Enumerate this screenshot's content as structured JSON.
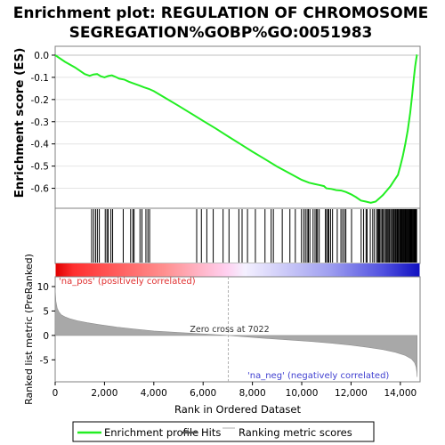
{
  "chart_data": {
    "type": "line",
    "title_line1": "Enrichment plot: REGULATION OF CHROMOSOME",
    "title_line2": "SEGREGATION%GOBP%GO:0051983",
    "es_ylabel": "Enrichment score (ES)",
    "es_yticks": [
      0.0,
      -0.1,
      -0.2,
      -0.3,
      -0.4,
      -0.5,
      -0.6
    ],
    "es_ylim": [
      -0.69,
      0.04
    ],
    "xlim": [
      0,
      14800
    ],
    "xticks": [
      0,
      2000,
      4000,
      6000,
      8000,
      10000,
      12000,
      14000
    ],
    "xtick_labels": [
      "0",
      "2,000",
      "4,000",
      "6,000",
      "8,000",
      "10,000",
      "12,000",
      "14,000"
    ],
    "xlabel": "Rank in Ordered Dataset",
    "rank_ylabel": "Ranked list metric (PreRanked)",
    "rank_yticks": [
      10,
      5,
      0,
      -5
    ],
    "rank_ylim": [
      -9.5,
      12.0
    ],
    "zero_cross_label": "Zero cross at 7022",
    "zero_cross": 7022,
    "pos_label": "'na_pos' (positively correlated)",
    "neg_label": "'na_neg' (negatively correlated)",
    "n_genes": 14680,
    "es_profile": {
      "x": [
        0,
        400,
        800,
        1200,
        1400,
        1550,
        1700,
        1850,
        2000,
        2150,
        2300,
        2450,
        2600,
        2800,
        3000,
        3200,
        3400,
        3600,
        3800,
        4000,
        4500,
        5000,
        5500,
        6000,
        6500,
        7000,
        7500,
        8000,
        8500,
        9000,
        9500,
        10000,
        10300,
        10500,
        10700,
        10900,
        11000,
        11200,
        11400,
        11600,
        11800,
        12000,
        12200,
        12400,
        12600,
        12800,
        13000,
        13150,
        13300,
        13450,
        13600,
        13750,
        13900,
        14000,
        14100,
        14200,
        14300,
        14400,
        14480,
        14550,
        14600,
        14640,
        14670,
        14680
      ],
      "y": [
        0.0,
        -0.03,
        -0.055,
        -0.085,
        -0.093,
        -0.087,
        -0.085,
        -0.095,
        -0.1,
        -0.094,
        -0.091,
        -0.098,
        -0.106,
        -0.11,
        -0.12,
        -0.128,
        -0.136,
        -0.145,
        -0.152,
        -0.162,
        -0.195,
        -0.228,
        -0.262,
        -0.296,
        -0.33,
        -0.365,
        -0.4,
        -0.435,
        -0.468,
        -0.502,
        -0.532,
        -0.562,
        -0.575,
        -0.58,
        -0.585,
        -0.59,
        -0.6,
        -0.603,
        -0.608,
        -0.61,
        -0.617,
        -0.627,
        -0.64,
        -0.655,
        -0.66,
        -0.665,
        -0.66,
        -0.645,
        -0.63,
        -0.61,
        -0.59,
        -0.565,
        -0.54,
        -0.5,
        -0.455,
        -0.4,
        -0.34,
        -0.26,
        -0.18,
        -0.1,
        -0.05,
        -0.02,
        0.0,
        0.0
      ]
    },
    "hits": [
      1480,
      1560,
      1640,
      1710,
      1790,
      2030,
      2100,
      2150,
      2260,
      2330,
      2760,
      3060,
      3150,
      3200,
      3440,
      3520,
      3680,
      3760,
      3830,
      5740,
      5930,
      6150,
      6410,
      6810,
      7050,
      7450,
      7580,
      7800,
      8120,
      8510,
      8760,
      8850,
      9210,
      9520,
      9740,
      9990,
      10080,
      10150,
      10220,
      10270,
      10330,
      10460,
      10540,
      10600,
      10640,
      10710,
      10960,
      11010,
      11070,
      11100,
      11170,
      11250,
      11440,
      11590,
      11660,
      11730,
      11790,
      12020,
      12410,
      12510,
      12610,
      12650,
      12780,
      12880,
      12950,
      13040,
      13080,
      13120,
      13160,
      13210,
      13260,
      13300,
      13360,
      13400,
      13450,
      13490,
      13530,
      13560,
      13610,
      13650,
      13700,
      13740,
      13780,
      13810,
      13850,
      13880,
      13910,
      13940,
      13980,
      14010,
      14040,
      14070,
      14100,
      14130,
      14160,
      14190,
      14220,
      14250,
      14280,
      14310,
      14340,
      14370,
      14400,
      14420,
      14440,
      14470,
      14490,
      14520,
      14550,
      14570,
      14600,
      14620,
      14640,
      14660
    ],
    "ranked_metric": {
      "x": [
        0,
        30,
        80,
        150,
        250,
        400,
        600,
        900,
        1300,
        1800,
        2500,
        3200,
        4000,
        5000,
        6000,
        6600,
        7022,
        7600,
        8400,
        9400,
        10400,
        11200,
        12000,
        12700,
        13300,
        13800,
        14200,
        14450,
        14580,
        14640,
        14670,
        14680
      ],
      "y": [
        9.5,
        7.0,
        5.6,
        4.8,
        4.2,
        3.8,
        3.4,
        3.0,
        2.6,
        2.2,
        1.7,
        1.3,
        0.9,
        0.6,
        0.3,
        0.12,
        0.0,
        -0.25,
        -0.55,
        -0.9,
        -1.25,
        -1.6,
        -2.0,
        -2.45,
        -2.9,
        -3.45,
        -4.1,
        -4.8,
        -5.6,
        -6.5,
        -7.6,
        -8.5
      ]
    },
    "legend": [
      "Enrichment profile",
      "Hits",
      "Ranking metric scores"
    ],
    "colors": {
      "profile": "#22ee22",
      "hits": "#000000",
      "metric": "#c8c8c8",
      "bar_stops": [
        "#e00000",
        "#ff8080",
        "#ffffff",
        "#a0a0ff",
        "#0000cc"
      ]
    }
  }
}
